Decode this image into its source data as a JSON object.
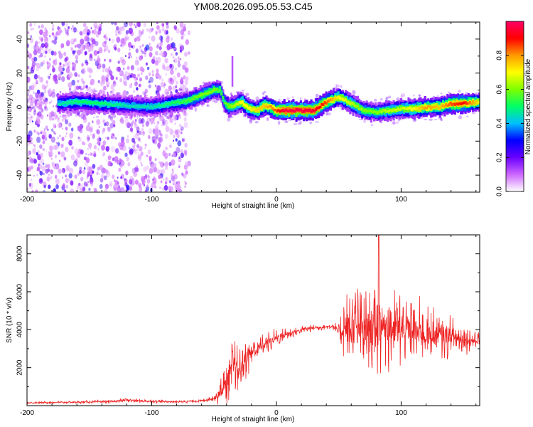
{
  "title": "YM08.2026.095.05.53.C45",
  "chart_data": [
    {
      "type": "heatmap",
      "name": "spectrogram",
      "xlabel": "Height of straight line (km)",
      "ylabel": "Frequency (Hz)",
      "xlim": [
        -200,
        163
      ],
      "ylim": [
        -50,
        50
      ],
      "xticks": [
        -200,
        -100,
        0,
        100
      ],
      "yticks": [
        -40,
        -20,
        0,
        20,
        40
      ],
      "xtick_labels": [
        "-200",
        "-100",
        "0",
        "100"
      ],
      "ytick_labels": [
        "-40",
        "-20",
        "0",
        "20",
        "40"
      ],
      "colorbar": {
        "label": "Normalized spectral amplitude",
        "range": [
          0,
          1
        ],
        "ticks": [
          0.0,
          0.2,
          0.4,
          0.6,
          0.8
        ],
        "tick_labels": [
          "0.0",
          "0.2",
          "0.4",
          "0.6",
          "0.8"
        ],
        "colors": [
          "#ffffff",
          "#cc66ff",
          "#6a00ff",
          "#0000ff",
          "#00bfff",
          "#00ff66",
          "#7dff00",
          "#ffff00",
          "#ff9900",
          "#ff0000",
          "#ff0066"
        ]
      },
      "ridge": {
        "x": [
          -175,
          -160,
          -140,
          -120,
          -100,
          -85,
          -70,
          -60,
          -50,
          -45,
          -42,
          -38,
          -32,
          -28,
          -22,
          -15,
          -10,
          -5,
          0,
          5,
          10,
          20,
          30,
          40,
          50,
          60,
          70,
          80,
          90,
          100,
          110,
          120,
          130,
          140,
          150,
          163
        ],
        "freq": [
          2,
          3,
          2,
          1,
          0,
          2,
          4,
          7,
          10,
          10,
          3,
          0,
          2,
          3,
          -1,
          -2,
          1,
          0,
          -2,
          -2,
          -2,
          -2,
          -2,
          3,
          6,
          2,
          -2,
          -3,
          -2,
          -1,
          -1,
          0,
          0,
          2,
          2,
          3
        ],
        "amplitude": [
          0.45,
          0.5,
          0.5,
          0.45,
          0.45,
          0.5,
          0.55,
          0.6,
          0.6,
          0.55,
          0.55,
          0.6,
          0.65,
          0.7,
          0.7,
          0.75,
          0.75,
          0.8,
          0.85,
          0.95,
          0.97,
          0.97,
          0.95,
          0.85,
          0.7,
          0.65,
          0.6,
          0.6,
          0.65,
          0.65,
          0.7,
          0.8,
          0.75,
          0.85,
          0.9,
          0.7
        ]
      },
      "noise_region": {
        "x_from": -200,
        "x_to": -70,
        "amplitude": 0.2
      }
    },
    {
      "type": "line",
      "name": "snr",
      "xlabel": "Height of straight line (km)",
      "ylabel": "SNR (10 * v/v)",
      "xlim": [
        -200,
        163
      ],
      "ylim": [
        0,
        9000
      ],
      "xticks": [
        -200,
        -100,
        0,
        100
      ],
      "yticks": [
        2000,
        4000,
        6000,
        8000
      ],
      "xtick_labels": [
        "-200",
        "-100",
        "0",
        "100"
      ],
      "ytick_labels": [
        "2000",
        "4000",
        "6000",
        "8000"
      ],
      "color": "#ee2222",
      "envelope": {
        "x": [
          -200,
          -160,
          -130,
          -120,
          -110,
          -100,
          -80,
          -60,
          -50,
          -45,
          -40,
          -35,
          -30,
          -25,
          -20,
          -10,
          0,
          10,
          20,
          30,
          40,
          45,
          50,
          52,
          55,
          60,
          70,
          80,
          85,
          90,
          100,
          110,
          120,
          130,
          140,
          150,
          163
        ],
        "mean": [
          150,
          180,
          220,
          300,
          250,
          230,
          200,
          250,
          400,
          700,
          1200,
          2000,
          1800,
          2500,
          2800,
          3200,
          3600,
          3800,
          4000,
          4100,
          4150,
          4200,
          3900,
          4000,
          4000,
          4000,
          4000,
          4100,
          4200,
          4100,
          4000,
          3900,
          3800,
          3700,
          3600,
          3500,
          3400
        ],
        "spread": [
          60,
          80,
          100,
          150,
          120,
          100,
          80,
          100,
          200,
          900,
          1400,
          1800,
          1600,
          1200,
          1000,
          700,
          500,
          350,
          250,
          200,
          150,
          200,
          500,
          1400,
          2200,
          2500,
          2600,
          2700,
          2700,
          2600,
          2400,
          2100,
          1800,
          1500,
          1200,
          900,
          500
        ],
        "peak_x": 82,
        "peak_value": 9000
      }
    }
  ]
}
